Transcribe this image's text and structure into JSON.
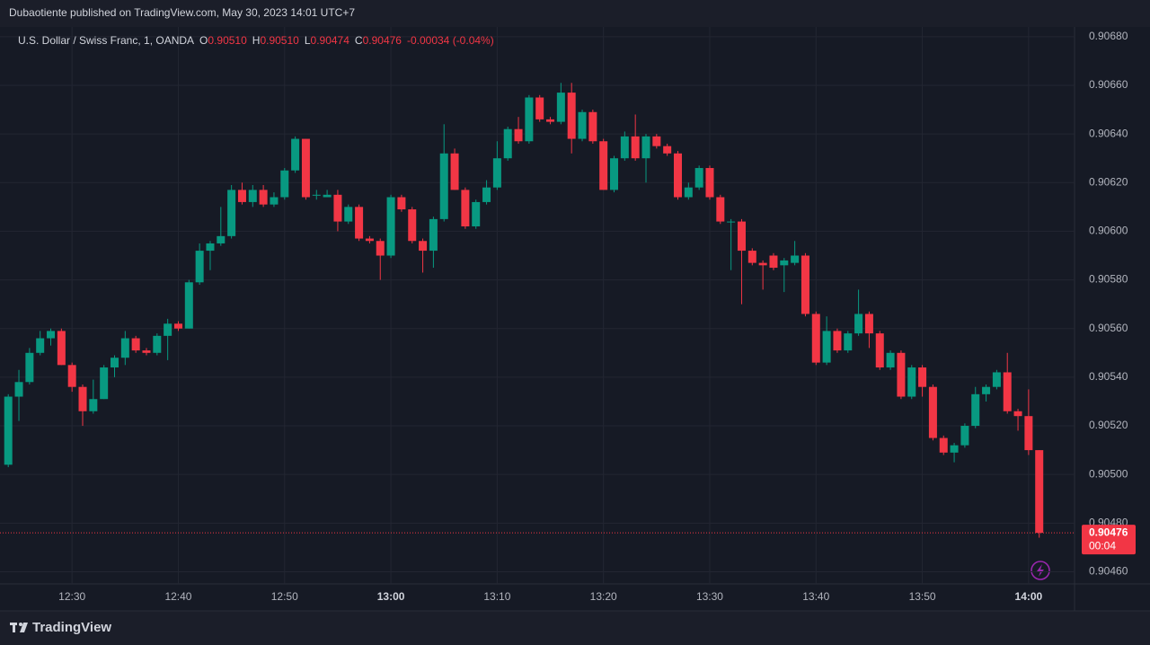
{
  "attribution": "Dubaotiente published on TradingView.com, May 30, 2023 14:01 UTC+7",
  "brand": "TradingView",
  "chart_data": {
    "type": "candlestick",
    "title": "U.S. Dollar / Swiss Franc, 1, OANDA",
    "legend": {
      "o_label": "O",
      "open": "0.90510",
      "h_label": "H",
      "high": "0.90510",
      "l_label": "L",
      "low": "0.90474",
      "c_label": "C",
      "close": "0.90476",
      "change": "-0.00034 (-0.04%)"
    },
    "up_color": "#089981",
    "down_color": "#f23645",
    "grid": true,
    "categories": [
      null,
      null,
      null,
      null,
      null,
      null,
      "12:30",
      null,
      null,
      null,
      null,
      null,
      null,
      null,
      null,
      null,
      "12:40",
      null,
      null,
      null,
      null,
      null,
      null,
      null,
      null,
      null,
      "12:50",
      null,
      null,
      null,
      null,
      null,
      null,
      null,
      null,
      null,
      "13:00",
      null,
      null,
      null,
      null,
      null,
      null,
      null,
      null,
      null,
      "13:10",
      null,
      null,
      null,
      null,
      null,
      null,
      null,
      null,
      null,
      "13:20",
      null,
      null,
      null,
      null,
      null,
      null,
      null,
      null,
      null,
      "13:30",
      null,
      null,
      null,
      null,
      null,
      null,
      null,
      null,
      null,
      "13:40",
      null,
      null,
      null,
      null,
      null,
      null,
      null,
      null,
      null,
      "13:50",
      null,
      null,
      null,
      null,
      null,
      null,
      null,
      null,
      null,
      "14:00",
      null
    ],
    "open": [
      0.90504,
      0.90532,
      0.90538,
      0.9055,
      0.90556,
      0.90559,
      0.90545,
      0.90536,
      0.90526,
      0.90531,
      0.90544,
      0.90548,
      0.90556,
      0.90551,
      0.9055,
      0.90557,
      0.90562,
      0.9056,
      0.90579,
      0.90592,
      0.90595,
      0.90598,
      0.90617,
      0.90612,
      0.90617,
      0.90611,
      0.90614,
      0.90625,
      0.90638,
      0.90615,
      0.90614,
      0.90615,
      0.90604,
      0.9061,
      0.90597,
      0.90596,
      0.9059,
      0.90614,
      0.90609,
      0.90596,
      0.90592,
      0.90605,
      0.90632,
      0.90617,
      0.90602,
      0.90612,
      0.90618,
      0.9063,
      0.90642,
      0.90637,
      0.90655,
      0.90646,
      0.90645,
      0.90657,
      0.90638,
      0.90649,
      0.90637,
      0.90617,
      0.9063,
      0.90639,
      0.9063,
      0.90639,
      0.90635,
      0.90632,
      0.90614,
      0.90618,
      0.90626,
      0.90614,
      0.90604,
      0.90604,
      0.90592,
      0.90587,
      0.9059,
      0.90586,
      0.90587,
      0.9059,
      0.90566,
      0.90546,
      0.90559,
      0.90551,
      0.90558,
      0.90566,
      0.90558,
      0.90544,
      0.9055,
      0.90532,
      0.90544,
      0.90536,
      0.90515,
      0.90509,
      0.90512,
      0.9052,
      0.90533,
      0.90536,
      0.90542,
      0.90526,
      0.90524,
      0.9051
    ],
    "high": [
      0.90533,
      0.90543,
      0.90552,
      0.90559,
      0.9056,
      0.9056,
      0.90546,
      0.90537,
      0.90539,
      0.90545,
      0.90549,
      0.90559,
      0.90557,
      0.90552,
      0.90558,
      0.90564,
      0.90563,
      0.9058,
      0.90595,
      0.90596,
      0.9061,
      0.90619,
      0.9062,
      0.90619,
      0.90619,
      0.90616,
      0.90626,
      0.90639,
      0.90638,
      0.90617,
      0.90617,
      0.90617,
      0.90611,
      0.90611,
      0.90598,
      0.90597,
      0.90615,
      0.90615,
      0.9061,
      0.90597,
      0.90606,
      0.90644,
      0.90634,
      0.90618,
      0.90613,
      0.90621,
      0.90637,
      0.90643,
      0.90647,
      0.90656,
      0.90656,
      0.90647,
      0.90661,
      0.90661,
      0.9065,
      0.9065,
      0.90638,
      0.90631,
      0.90641,
      0.90648,
      0.9064,
      0.9064,
      0.90636,
      0.90633,
      0.9062,
      0.90627,
      0.90627,
      0.90615,
      0.90605,
      0.90605,
      0.90593,
      0.90588,
      0.90591,
      0.90589,
      0.90596,
      0.90591,
      0.90567,
      0.90565,
      0.9056,
      0.90559,
      0.90576,
      0.90567,
      0.90559,
      0.90551,
      0.90551,
      0.90545,
      0.90545,
      0.90537,
      0.90516,
      0.90513,
      0.90521,
      0.90536,
      0.90537,
      0.90543,
      0.9055,
      0.90527,
      0.90535,
      0.9051
    ],
    "low": [
      0.90503,
      0.90522,
      0.90537,
      0.90549,
      0.90553,
      0.90545,
      0.90534,
      0.9052,
      0.90525,
      0.90531,
      0.9054,
      0.90545,
      0.9055,
      0.90549,
      0.90549,
      0.90547,
      0.90559,
      0.9056,
      0.90578,
      0.90584,
      0.90594,
      0.90597,
      0.90611,
      0.9061,
      0.9061,
      0.9061,
      0.90613,
      0.90624,
      0.90613,
      0.90613,
      0.90614,
      0.906,
      0.90603,
      0.90596,
      0.90595,
      0.9058,
      0.90589,
      0.90608,
      0.90595,
      0.90583,
      0.90585,
      0.90604,
      0.90617,
      0.90601,
      0.90601,
      0.90611,
      0.90617,
      0.90629,
      0.90636,
      0.90636,
      0.90645,
      0.90644,
      0.90644,
      0.90632,
      0.90637,
      0.90636,
      0.90617,
      0.90616,
      0.90629,
      0.90629,
      0.9062,
      0.90634,
      0.90631,
      0.90613,
      0.90613,
      0.90617,
      0.90613,
      0.90603,
      0.90584,
      0.9057,
      0.90586,
      0.90576,
      0.90584,
      0.90575,
      0.90586,
      0.90565,
      0.90545,
      0.90545,
      0.9055,
      0.9055,
      0.90557,
      0.90552,
      0.90543,
      0.90543,
      0.90531,
      0.90531,
      0.90532,
      0.90514,
      0.90508,
      0.90505,
      0.90511,
      0.90519,
      0.9053,
      0.90535,
      0.90525,
      0.90518,
      0.90508,
      0.90474
    ],
    "close": [
      0.90532,
      0.90538,
      0.9055,
      0.90556,
      0.90559,
      0.90545,
      0.90536,
      0.90526,
      0.90531,
      0.90544,
      0.90548,
      0.90556,
      0.90551,
      0.9055,
      0.90557,
      0.90562,
      0.9056,
      0.90579,
      0.90592,
      0.90595,
      0.90598,
      0.90617,
      0.90612,
      0.90617,
      0.90611,
      0.90614,
      0.90625,
      0.90638,
      0.90614,
      0.90615,
      0.90615,
      0.90604,
      0.9061,
      0.90597,
      0.90596,
      0.9059,
      0.90614,
      0.90609,
      0.90596,
      0.90592,
      0.90605,
      0.90632,
      0.90617,
      0.90602,
      0.90612,
      0.90618,
      0.9063,
      0.90642,
      0.90637,
      0.90655,
      0.90646,
      0.90645,
      0.90657,
      0.90638,
      0.90649,
      0.90637,
      0.90617,
      0.9063,
      0.90639,
      0.9063,
      0.90639,
      0.90635,
      0.90632,
      0.90614,
      0.90618,
      0.90626,
      0.90614,
      0.90604,
      0.90604,
      0.90592,
      0.90587,
      0.90586,
      0.90585,
      0.90588,
      0.9059,
      0.90566,
      0.90546,
      0.90559,
      0.90551,
      0.90558,
      0.90566,
      0.90558,
      0.90544,
      0.9055,
      0.90532,
      0.90544,
      0.90536,
      0.90515,
      0.90509,
      0.90512,
      0.9052,
      0.90533,
      0.90536,
      0.90542,
      0.90526,
      0.90524,
      0.9051,
      0.90476
    ],
    "ylim": [
      0.90455,
      0.90684
    ],
    "yticks": [
      {
        "value": 0.9046,
        "label": "0.90460"
      },
      {
        "value": 0.9048,
        "label": "0.90480"
      },
      {
        "value": 0.905,
        "label": "0.90500"
      },
      {
        "value": 0.9052,
        "label": "0.90520"
      },
      {
        "value": 0.9054,
        "label": "0.90540"
      },
      {
        "value": 0.9056,
        "label": "0.90560"
      },
      {
        "value": 0.9058,
        "label": "0.90580"
      },
      {
        "value": 0.906,
        "label": "0.90600"
      },
      {
        "value": 0.9062,
        "label": "0.90620"
      },
      {
        "value": 0.9064,
        "label": "0.90640"
      },
      {
        "value": 0.9066,
        "label": "0.90660"
      },
      {
        "value": 0.9068,
        "label": "0.90680"
      }
    ],
    "last_price": {
      "value": 0.90476,
      "label": "0.90476"
    },
    "countdown": "00:04"
  }
}
